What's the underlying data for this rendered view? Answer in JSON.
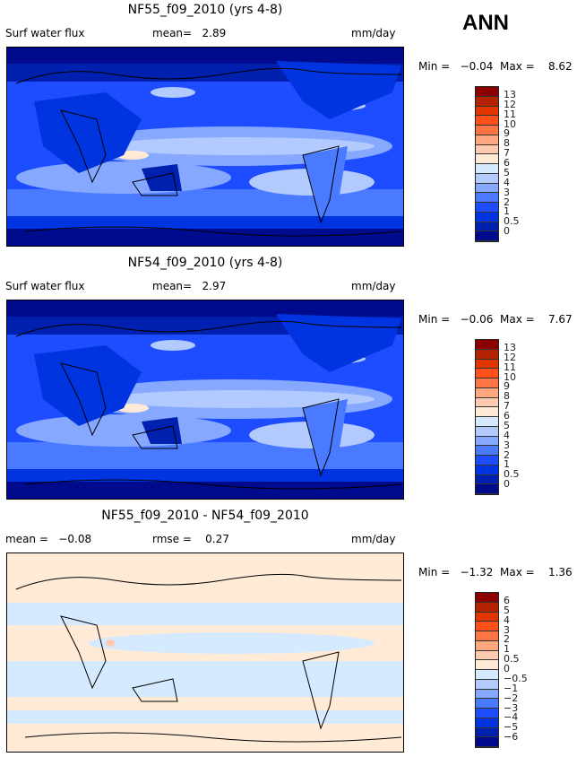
{
  "season": "ANN",
  "panels": [
    {
      "title": "NF55_f09_2010 (yrs 4-8)",
      "left": "Surf water flux",
      "stat": "mean=   2.89",
      "units": "mm/day",
      "minmax": "Min =   −0.04  Max =    8.62",
      "levels": [
        "13",
        "12",
        "11",
        "10",
        "9",
        "8",
        "7",
        "6",
        "5",
        "4",
        "3",
        "2",
        "1",
        "0.5",
        "0"
      ],
      "kind": "abs"
    },
    {
      "title": "NF54_f09_2010 (yrs 4-8)",
      "left": "Surf water flux",
      "stat": "mean=   2.97",
      "units": "mm/day",
      "minmax": "Min =   −0.06  Max =    7.67",
      "levels": [
        "13",
        "12",
        "11",
        "10",
        "9",
        "8",
        "7",
        "6",
        "5",
        "4",
        "3",
        "2",
        "1",
        "0.5",
        "0"
      ],
      "kind": "abs"
    },
    {
      "title": "NF55_f09_2010 - NF54_f09_2010",
      "left": "mean =   −0.08",
      "stat": "rmse =    0.27",
      "units": "mm/day",
      "minmax": "Min =   −1.32  Max =    1.36",
      "levels": [
        "6",
        "5",
        "4",
        "3",
        "2",
        "1",
        "0.5",
        "0",
        "−0.5",
        "−1",
        "−2",
        "−3",
        "−4",
        "−5",
        "−6"
      ],
      "kind": "diff"
    }
  ],
  "colors": [
    "#8b0000",
    "#b32200",
    "#e33500",
    "#ff5019",
    "#ff7444",
    "#ffa880",
    "#ffcbb0",
    "#ffead6",
    "#d6eaff",
    "#b3caff",
    "#86a8ff",
    "#4a7aff",
    "#1e4cff",
    "#0034e0",
    "#0020b0",
    "#000a8c"
  ]
}
